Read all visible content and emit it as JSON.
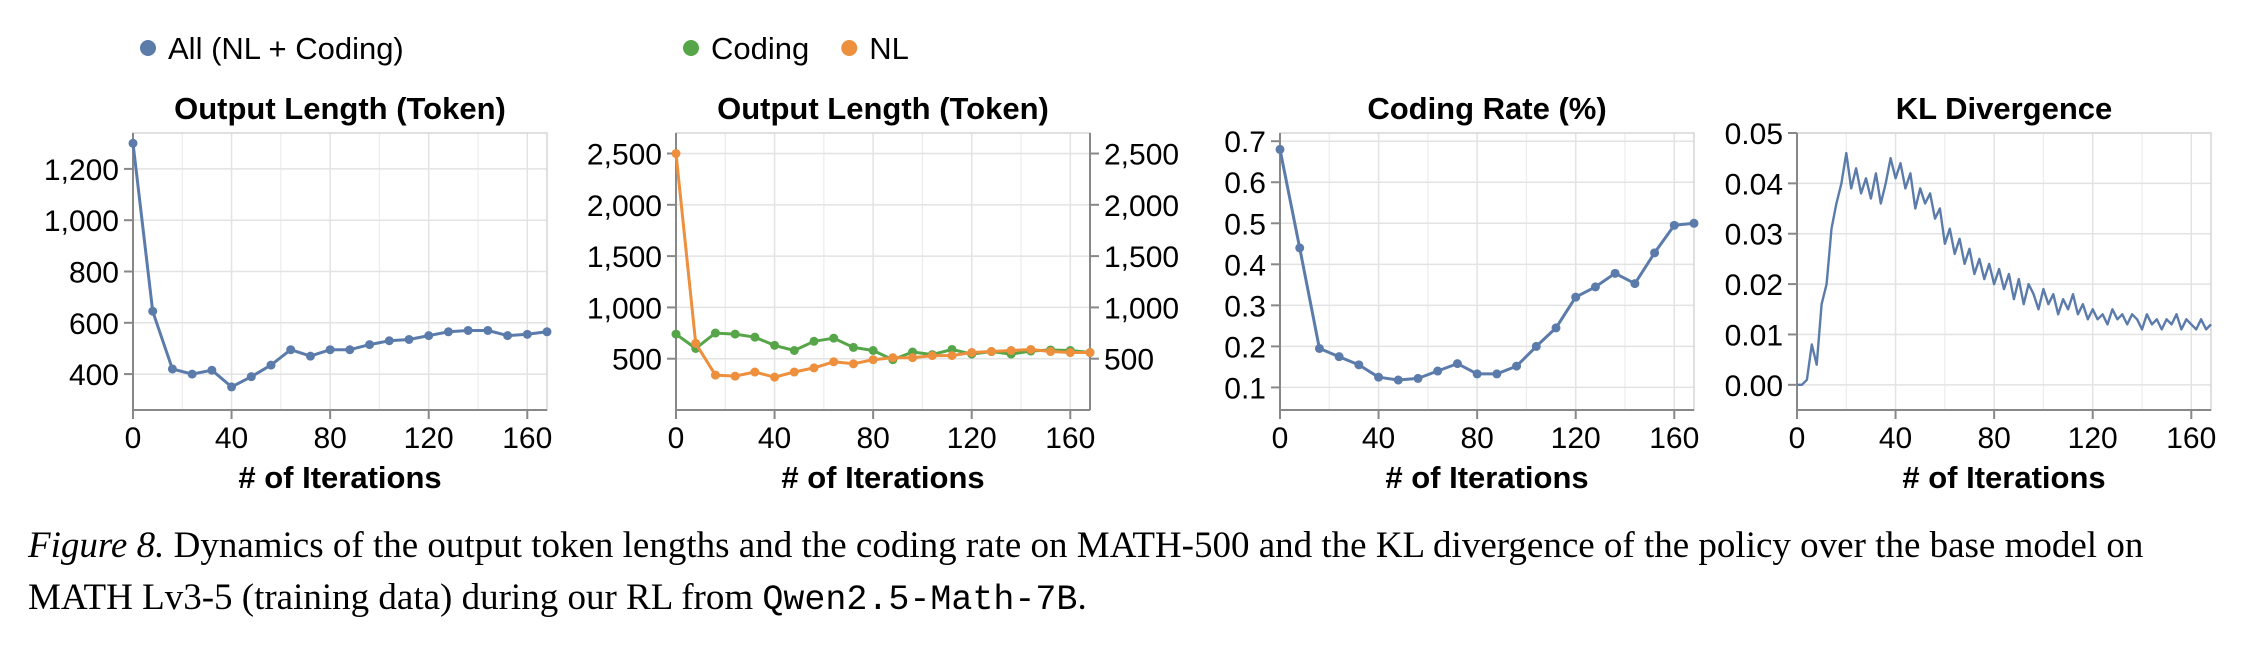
{
  "legend": {
    "left": [
      {
        "label": "All (NL + Coding)",
        "color": "#5b7bab"
      }
    ],
    "right": [
      {
        "label": "Coding",
        "color": "#56a548"
      },
      {
        "label": "NL",
        "color": "#ed8f3c"
      }
    ]
  },
  "caption": {
    "label": "Figure 8.",
    "text_before": " Dynamics of the output token lengths and the coding rate on MATH-500 and the KL divergence of the policy over the base model on MATH Lv3-5 (training data) during our RL from ",
    "code": "Qwen2.5-Math-7B",
    "text_after": "."
  },
  "chart_data": [
    {
      "type": "line",
      "title": "Output Length (Token)",
      "xlabel": "# of Iterations",
      "ylabel": "",
      "xlim": [
        0,
        168
      ],
      "ylim": [
        260,
        1340
      ],
      "xticks": [
        0,
        40,
        80,
        120,
        160
      ],
      "yticks": [
        400,
        600,
        800,
        1000,
        1200
      ],
      "ytick_labels": [
        "400",
        "600",
        "800",
        "1,000",
        "1,200"
      ],
      "grid": true,
      "markers": true,
      "series": [
        {
          "name": "All (NL + Coding)",
          "color": "#5b7bab",
          "x": [
            0,
            8,
            16,
            24,
            32,
            40,
            48,
            56,
            64,
            72,
            80,
            88,
            96,
            104,
            112,
            120,
            128,
            136,
            144,
            152,
            160,
            168
          ],
          "y": [
            1300,
            645,
            420,
            400,
            415,
            350,
            390,
            435,
            495,
            470,
            495,
            495,
            515,
            530,
            535,
            550,
            565,
            570,
            570,
            550,
            555,
            565
          ]
        }
      ]
    },
    {
      "type": "line",
      "title": "Output Length (Token)",
      "xlabel": "# of Iterations",
      "ylabel": "",
      "xlim": [
        0,
        168
      ],
      "ylim": [
        0,
        2700
      ],
      "xticks": [
        0,
        40,
        80,
        120,
        160
      ],
      "yticks": [
        500,
        1000,
        1500,
        2000,
        2500
      ],
      "ytick_labels": [
        "500",
        "1,000",
        "1,500",
        "2,000",
        "2,500"
      ],
      "dual_y_axis": true,
      "grid": true,
      "markers": true,
      "series": [
        {
          "name": "Coding",
          "color": "#56a548",
          "x": [
            0,
            8,
            16,
            24,
            32,
            40,
            48,
            56,
            64,
            72,
            80,
            88,
            96,
            104,
            112,
            120,
            128,
            136,
            144,
            152,
            160,
            168
          ],
          "y": [
            740,
            600,
            750,
            740,
            710,
            630,
            580,
            670,
            700,
            610,
            580,
            490,
            565,
            540,
            590,
            545,
            570,
            545,
            575,
            585,
            580,
            560
          ]
        },
        {
          "name": "NL",
          "color": "#ed8f3c",
          "x": [
            0,
            8,
            16,
            24,
            32,
            40,
            48,
            56,
            64,
            72,
            80,
            88,
            96,
            104,
            112,
            120,
            128,
            136,
            144,
            152,
            160,
            168
          ],
          "y": [
            2500,
            650,
            340,
            330,
            370,
            320,
            370,
            410,
            470,
            450,
            490,
            510,
            510,
            530,
            530,
            560,
            570,
            580,
            590,
            570,
            560,
            560
          ]
        }
      ]
    },
    {
      "type": "line",
      "title": "Coding Rate (%)",
      "xlabel": "# of Iterations",
      "ylabel": "",
      "xlim": [
        0,
        168
      ],
      "ylim": [
        0.045,
        0.72
      ],
      "xticks": [
        0,
        40,
        80,
        120,
        160
      ],
      "yticks": [
        0.1,
        0.2,
        0.3,
        0.4,
        0.5,
        0.6,
        0.7
      ],
      "ytick_labels": [
        "0.1",
        "0.2",
        "0.3",
        "0.4",
        "0.5",
        "0.6",
        "0.7"
      ],
      "grid": true,
      "markers": true,
      "series": [
        {
          "name": "",
          "color": "#5b7bab",
          "x": [
            0,
            8,
            16,
            24,
            32,
            40,
            48,
            56,
            64,
            72,
            80,
            88,
            96,
            104,
            112,
            120,
            128,
            136,
            144,
            152,
            160,
            168
          ],
          "y": [
            0.68,
            0.44,
            0.195,
            0.175,
            0.155,
            0.125,
            0.118,
            0.122,
            0.14,
            0.158,
            0.133,
            0.133,
            0.152,
            0.2,
            0.245,
            0.32,
            0.345,
            0.378,
            0.353,
            0.428,
            0.495,
            0.5
          ]
        }
      ]
    },
    {
      "type": "line",
      "title": "KL Divergence",
      "xlabel": "# of Iterations",
      "ylabel": "",
      "xlim": [
        0,
        168
      ],
      "ylim": [
        -0.005,
        0.05
      ],
      "xticks": [
        0,
        40,
        80,
        120,
        160
      ],
      "yticks": [
        0,
        0.01,
        0.02,
        0.03,
        0.04,
        0.05
      ],
      "ytick_labels": [
        "0.00",
        "0.01",
        "0.02",
        "0.03",
        "0.04",
        "0.05"
      ],
      "grid": true,
      "markers": false,
      "series": [
        {
          "name": "",
          "color": "#5b7bab",
          "x": [
            0,
            2,
            4,
            6,
            8,
            10,
            12,
            14,
            16,
            18,
            20,
            22,
            24,
            26,
            28,
            30,
            32,
            34,
            36,
            38,
            40,
            42,
            44,
            46,
            48,
            50,
            52,
            54,
            56,
            58,
            60,
            62,
            64,
            66,
            68,
            70,
            72,
            74,
            76,
            78,
            80,
            82,
            84,
            86,
            88,
            90,
            92,
            94,
            96,
            98,
            100,
            102,
            104,
            106,
            108,
            110,
            112,
            114,
            116,
            118,
            120,
            122,
            124,
            126,
            128,
            130,
            132,
            134,
            136,
            138,
            140,
            142,
            144,
            146,
            148,
            150,
            152,
            154,
            156,
            158,
            160,
            162,
            164,
            166,
            168
          ],
          "y": [
            0.0,
            0.0,
            0.001,
            0.008,
            0.004,
            0.016,
            0.02,
            0.031,
            0.036,
            0.04,
            0.046,
            0.039,
            0.043,
            0.038,
            0.041,
            0.037,
            0.042,
            0.036,
            0.04,
            0.045,
            0.041,
            0.044,
            0.039,
            0.042,
            0.035,
            0.039,
            0.036,
            0.038,
            0.033,
            0.035,
            0.028,
            0.031,
            0.026,
            0.029,
            0.024,
            0.027,
            0.022,
            0.025,
            0.021,
            0.024,
            0.02,
            0.023,
            0.019,
            0.022,
            0.017,
            0.021,
            0.016,
            0.02,
            0.018,
            0.015,
            0.019,
            0.016,
            0.018,
            0.014,
            0.017,
            0.015,
            0.018,
            0.014,
            0.016,
            0.013,
            0.015,
            0.013,
            0.014,
            0.012,
            0.015,
            0.013,
            0.014,
            0.012,
            0.014,
            0.013,
            0.011,
            0.014,
            0.012,
            0.013,
            0.011,
            0.013,
            0.012,
            0.014,
            0.011,
            0.013,
            0.012,
            0.011,
            0.013,
            0.011,
            0.012
          ]
        }
      ]
    }
  ]
}
